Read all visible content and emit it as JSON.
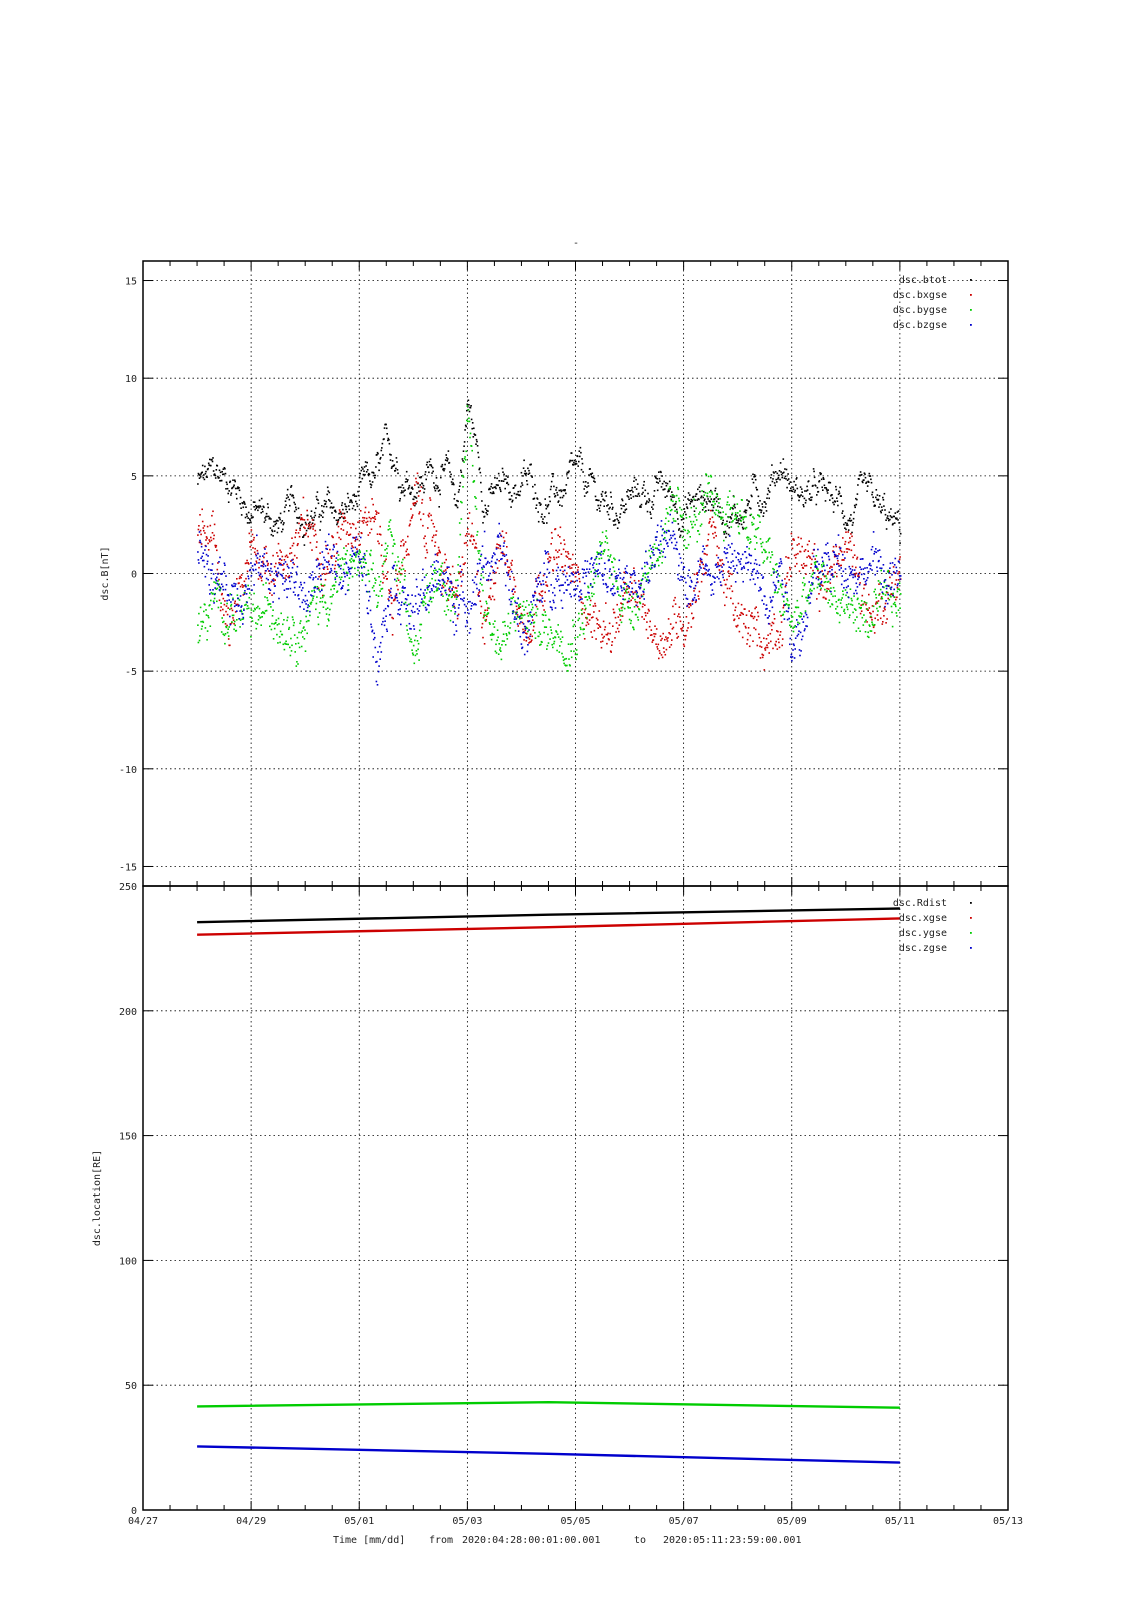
{
  "figure": {
    "top_mark": "-",
    "caption": {
      "time_label": "Time [mm/dd]",
      "from_word": "from",
      "start": "2020:04:28:00:01:00.001",
      "to_word": "to",
      "end": "2020:05:11:23:59:00.001"
    }
  },
  "chart_data": [
    {
      "type": "scatter",
      "ylabel": "dsc.B[nT]",
      "xlim": [
        "04/27",
        "05/13"
      ],
      "ylim": [
        -16,
        16
      ],
      "yticks": [
        15,
        10,
        5,
        0,
        -5,
        -10,
        -15
      ],
      "xticks": [
        "04/27",
        "04/29",
        "05/01",
        "05/03",
        "05/05",
        "05/07",
        "05/09",
        "05/11",
        "05/13"
      ],
      "show_x_tick_labels": false,
      "grid": true,
      "legend_position": "top-right",
      "series": [
        {
          "name": "dsc.btot",
          "color": "#000000",
          "x_days": [
            1,
            1.3,
            1.6,
            2.0,
            2.5,
            3.0,
            3.5,
            4.0,
            4.3,
            4.6,
            5.0,
            5.5,
            5.8,
            6.0,
            6.3,
            6.6,
            7.0,
            7.5,
            8.0,
            8.5,
            9.0,
            9.5,
            10.0,
            10.5,
            11.0,
            11.5,
            11.8,
            12.0,
            12.5,
            13.0,
            13.5,
            14.0
          ],
          "values": [
            4.6,
            4.8,
            5.0,
            3.4,
            2.5,
            3.5,
            2.8,
            3.6,
            4.6,
            6.0,
            5.0,
            5.5,
            3.6,
            8.8,
            4.2,
            4.0,
            4.8,
            3.9,
            4.4,
            3.4,
            3.8,
            4.3,
            3.6,
            4.0,
            3.2,
            4.6,
            6.0,
            4.4,
            3.8,
            3.2,
            2.8,
            1.8
          ]
        },
        {
          "name": "dsc.bxgse",
          "color": "#cc0000",
          "x_days": [
            1,
            1.3,
            1.6,
            2.0,
            2.5,
            3.0,
            3.5,
            4.0,
            4.3,
            4.6,
            5.0,
            5.5,
            5.8,
            6.0,
            6.3,
            6.6,
            7.0,
            7.5,
            8.0,
            8.5,
            9.0,
            9.5,
            10.0,
            10.5,
            11.0,
            11.5,
            11.8,
            12.0,
            12.5,
            13.0,
            13.5,
            14.0
          ],
          "values": [
            2.5,
            1.0,
            -3.5,
            0.8,
            0.8,
            2.0,
            1.5,
            3.8,
            3.0,
            -1.5,
            3.5,
            1.0,
            -2.0,
            2.0,
            -3.0,
            3.0,
            -2.5,
            1.5,
            -0.5,
            -3.0,
            -1.5,
            -3.0,
            -2.0,
            2.5,
            -3.0,
            -3.5,
            -1.5,
            2.0,
            -1.0,
            1.5,
            -2.0,
            0.5
          ]
        },
        {
          "name": "dsc.bygse",
          "color": "#00cc00",
          "x_days": [
            1,
            1.3,
            1.6,
            2.0,
            2.5,
            3.0,
            3.5,
            4.0,
            4.3,
            4.6,
            5.0,
            5.5,
            5.8,
            6.0,
            6.3,
            6.6,
            7.0,
            7.5,
            8.0,
            8.5,
            9.0,
            9.5,
            10.0,
            10.5,
            11.0,
            11.5,
            11.8,
            12.0,
            12.5,
            13.0,
            13.5,
            14.0
          ],
          "values": [
            -3.0,
            -2.0,
            -1.5,
            -3.0,
            -1.5,
            -2.0,
            -0.5,
            0.5,
            -2.0,
            2.0,
            -3.0,
            0.5,
            -1.0,
            8.0,
            -1.0,
            -3.5,
            -2.0,
            -3.0,
            -2.0,
            1.0,
            -1.5,
            2.0,
            2.5,
            3.0,
            3.5,
            1.0,
            -1.5,
            -2.5,
            -0.5,
            -1.5,
            -2.5,
            -1.8
          ]
        },
        {
          "name": "dsc.bzgse",
          "color": "#0000cc",
          "x_days": [
            1,
            1.3,
            1.6,
            2.0,
            2.5,
            3.0,
            3.5,
            4.0,
            4.3,
            4.6,
            5.0,
            5.5,
            5.8,
            6.0,
            6.3,
            6.6,
            7.0,
            7.5,
            8.0,
            8.5,
            9.0,
            9.5,
            10.0,
            10.5,
            11.0,
            11.5,
            11.8,
            12.0,
            12.5,
            13.0,
            13.5,
            14.0
          ],
          "values": [
            2.0,
            0.5,
            -1.0,
            0.5,
            0.0,
            -1.0,
            0.5,
            1.0,
            -3.5,
            1.0,
            -2.0,
            0.0,
            -1.5,
            -1.0,
            1.0,
            0.5,
            -3.0,
            0.0,
            0.5,
            -0.5,
            -1.0,
            1.5,
            0.0,
            1.0,
            0.5,
            -0.5,
            1.0,
            -3.0,
            0.0,
            1.0,
            0.5,
            -0.8
          ]
        }
      ]
    },
    {
      "type": "line",
      "ylabel": "dsc.location[RE]",
      "xlim": [
        "04/27",
        "05/13"
      ],
      "ylim": [
        0,
        250
      ],
      "yticks": [
        250,
        200,
        150,
        100,
        50,
        0
      ],
      "xticks": [
        "04/27",
        "04/29",
        "05/01",
        "05/03",
        "05/05",
        "05/07",
        "05/09",
        "05/11",
        "05/13"
      ],
      "show_x_tick_labels": true,
      "grid": true,
      "legend_position": "top-right",
      "series": [
        {
          "name": "dsc.Rdist",
          "color": "#000000",
          "x_days": [
            1,
            7.5,
            14
          ],
          "values": [
            235.5,
            238.5,
            241.0
          ]
        },
        {
          "name": "dsc.xgse",
          "color": "#cc0000",
          "x_days": [
            1,
            7.5,
            14
          ],
          "values": [
            230.5,
            233.5,
            237.0
          ]
        },
        {
          "name": "dsc.ygse",
          "color": "#00cc00",
          "x_days": [
            1,
            7.5,
            14
          ],
          "values": [
            41.5,
            43.2,
            41.0
          ]
        },
        {
          "name": "dsc.zgse",
          "color": "#0000cc",
          "x_days": [
            1,
            7.5,
            14
          ],
          "values": [
            25.5,
            22.5,
            19.0
          ]
        }
      ]
    }
  ]
}
